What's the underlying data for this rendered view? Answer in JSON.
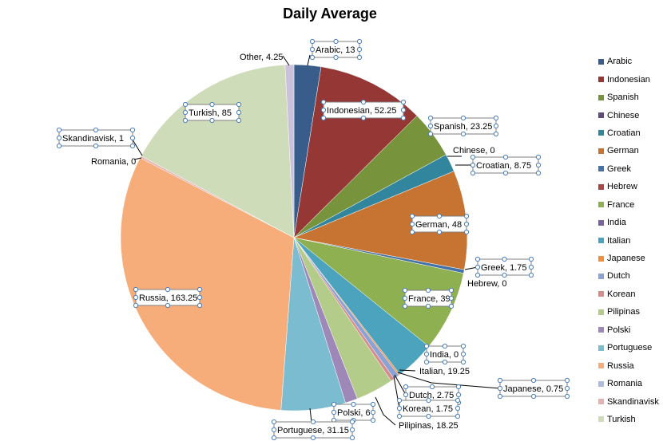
{
  "chart_data": {
    "type": "pie",
    "title": "Daily Average",
    "legend_position": "right",
    "slices": [
      {
        "name": "Arabic",
        "value": 13,
        "color": "#385d8a",
        "label": "Arabic, 13"
      },
      {
        "name": "Indonesian",
        "value": 52.25,
        "color": "#953735",
        "label": "Indonesian, 52.25"
      },
      {
        "name": "Spanish",
        "value": 23.25,
        "color": "#77933c",
        "label": "Spanish, 23.25"
      },
      {
        "name": "Chinese",
        "value": 0,
        "color": "#604a7b",
        "label": "Chinese, 0"
      },
      {
        "name": "Croatian",
        "value": 8.75,
        "color": "#31859c",
        "label": "Croatian, 8.75"
      },
      {
        "name": "German",
        "value": 48,
        "color": "#c77332",
        "label": "German, 48"
      },
      {
        "name": "Greek",
        "value": 1.75,
        "color": "#4572a7",
        "label": "Greek, 1.75"
      },
      {
        "name": "Hebrew",
        "value": 0,
        "color": "#aa4643",
        "label": "Hebrew, 0"
      },
      {
        "name": "France",
        "value": 39,
        "color": "#8eb050",
        "label": "France, 39"
      },
      {
        "name": "India",
        "value": 0,
        "color": "#7b62a0",
        "label": "India, 0"
      },
      {
        "name": "Italian",
        "value": 19.25,
        "color": "#4ba3bd",
        "label": "Italian, 19.25"
      },
      {
        "name": "Japanese",
        "value": 0.75,
        "color": "#f28f3c",
        "label": "Japanese, 0.75"
      },
      {
        "name": "Dutch",
        "value": 2.75,
        "color": "#8aa3d4",
        "label": "Dutch, 2.75"
      },
      {
        "name": "Korean",
        "value": 1.75,
        "color": "#d68d8b",
        "label": "Korean, 1.75"
      },
      {
        "name": "Pilipinas",
        "value": 18.25,
        "color": "#b4cc8a",
        "label": "Pilipinas, 18.25"
      },
      {
        "name": "Polski",
        "value": 6,
        "color": "#9e88b8",
        "label": "Polski, 6"
      },
      {
        "name": "Portuguese",
        "value": 31.15,
        "color": "#7bbcd1",
        "label": "Portuguese, 31.15"
      },
      {
        "name": "Russia",
        "value": 163.25,
        "color": "#f7ad7a",
        "label": "Russia, 163.25"
      },
      {
        "name": "Romania",
        "value": 0,
        "color": "#aebdde",
        "label": "Romania, 0"
      },
      {
        "name": "Skandinavisk",
        "value": 1,
        "color": "#e6b2b1",
        "label": "Skandinavisk, 1"
      },
      {
        "name": "Turkish",
        "value": 85,
        "color": "#cfdcba",
        "label": "Turkish, 85"
      },
      {
        "name": "Other",
        "value": 4.25,
        "color": "#ccc1da",
        "label": "Other, 4.25"
      }
    ],
    "legend_entries": [
      "Arabic",
      "Indonesian",
      "Spanish",
      "Chinese",
      "Croatian",
      "German",
      "Greek",
      "Hebrew",
      "France",
      "India",
      "Italian",
      "Japanese",
      "Dutch",
      "Korean",
      "Pilipinas",
      "Polski",
      "Portuguese",
      "Russia",
      "Romania",
      "Skandinavisk",
      "Turkish"
    ]
  }
}
